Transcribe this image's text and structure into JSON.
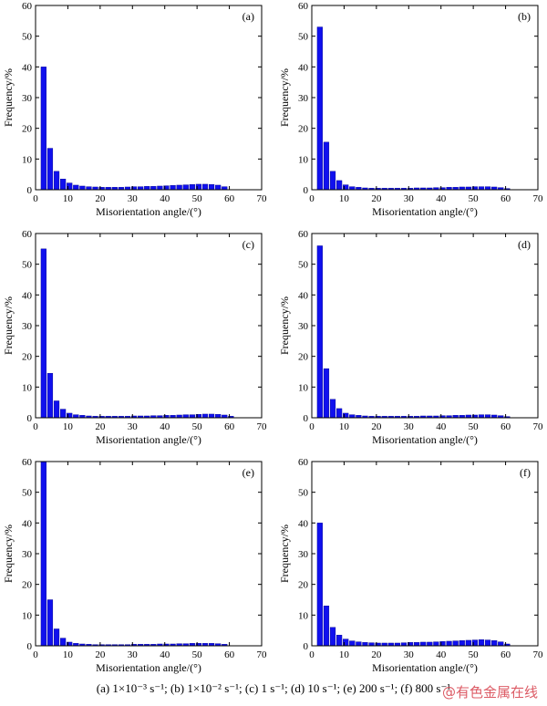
{
  "chart_data": [
    {
      "type": "bar",
      "panel_label": "(a)",
      "xlabel": "Misorientation angle/(°)",
      "ylabel": "Frequency/%",
      "xlim": [
        0,
        70
      ],
      "ylim": [
        0,
        60
      ],
      "xticks": [
        0,
        10,
        20,
        30,
        40,
        50,
        60,
        70
      ],
      "yticks": [
        0,
        10,
        20,
        30,
        40,
        50,
        60
      ],
      "x": [
        2.5,
        4.5,
        6.5,
        8.5,
        10.5,
        12.5,
        14.5,
        16.5,
        18.5,
        20.5,
        22.5,
        24.5,
        26.5,
        28.5,
        30.5,
        32.5,
        34.5,
        36.5,
        38.5,
        40.5,
        42.5,
        44.5,
        46.5,
        48.5,
        50.5,
        52.5,
        54.5,
        56.5,
        58.5
      ],
      "values": [
        40,
        13.5,
        6,
        3.5,
        2.2,
        1.5,
        1.2,
        1,
        0.9,
        0.8,
        0.8,
        0.8,
        0.8,
        0.9,
        1,
        1,
        1.1,
        1.1,
        1.2,
        1.3,
        1.4,
        1.5,
        1.6,
        1.7,
        1.8,
        1.8,
        1.7,
        1.5,
        1
      ]
    },
    {
      "type": "bar",
      "panel_label": "(b)",
      "xlabel": "Misorientation angle/(°)",
      "ylabel": "Frequency/%",
      "xlim": [
        0,
        70
      ],
      "ylim": [
        0,
        60
      ],
      "xticks": [
        0,
        10,
        20,
        30,
        40,
        50,
        60,
        70
      ],
      "yticks": [
        0,
        10,
        20,
        30,
        40,
        50,
        60
      ],
      "x": [
        2.5,
        4.5,
        6.5,
        8.5,
        10.5,
        12.5,
        14.5,
        16.5,
        18.5,
        20.5,
        22.5,
        24.5,
        26.5,
        28.5,
        30.5,
        32.5,
        34.5,
        36.5,
        38.5,
        40.5,
        42.5,
        44.5,
        46.5,
        48.5,
        50.5,
        52.5,
        54.5,
        56.5,
        58.5,
        60.5
      ],
      "values": [
        53,
        15.5,
        6,
        3,
        1.6,
        1,
        0.8,
        0.6,
        0.5,
        0.5,
        0.5,
        0.5,
        0.5,
        0.5,
        0.5,
        0.6,
        0.6,
        0.6,
        0.7,
        0.7,
        0.8,
        0.8,
        0.9,
        0.9,
        1,
        1,
        1,
        0.9,
        0.7,
        0.4
      ]
    },
    {
      "type": "bar",
      "panel_label": "(c)",
      "xlabel": "Misorientation angle/(°)",
      "ylabel": "Frequency/%",
      "xlim": [
        0,
        70
      ],
      "ylim": [
        0,
        60
      ],
      "xticks": [
        0,
        10,
        20,
        30,
        40,
        50,
        60,
        70
      ],
      "yticks": [
        0,
        10,
        20,
        30,
        40,
        50,
        60
      ],
      "x": [
        2.5,
        4.5,
        6.5,
        8.5,
        10.5,
        12.5,
        14.5,
        16.5,
        18.5,
        20.5,
        22.5,
        24.5,
        26.5,
        28.5,
        30.5,
        32.5,
        34.5,
        36.5,
        38.5,
        40.5,
        42.5,
        44.5,
        46.5,
        48.5,
        50.5,
        52.5,
        54.5,
        56.5,
        58.5,
        60.5
      ],
      "values": [
        55,
        14.5,
        5.5,
        2.8,
        1.5,
        1,
        0.8,
        0.6,
        0.5,
        0.5,
        0.5,
        0.5,
        0.5,
        0.5,
        0.6,
        0.6,
        0.6,
        0.7,
        0.7,
        0.8,
        0.8,
        0.9,
        1,
        1,
        1.1,
        1.2,
        1.2,
        1.1,
        0.9,
        0.5
      ]
    },
    {
      "type": "bar",
      "panel_label": "(d)",
      "xlabel": "Misorientation angle/(°)",
      "ylabel": "Frequency/%",
      "xlim": [
        0,
        70
      ],
      "ylim": [
        0,
        60
      ],
      "xticks": [
        0,
        10,
        20,
        30,
        40,
        50,
        60,
        70
      ],
      "yticks": [
        0,
        10,
        20,
        30,
        40,
        50,
        60
      ],
      "x": [
        2.5,
        4.5,
        6.5,
        8.5,
        10.5,
        12.5,
        14.5,
        16.5,
        18.5,
        20.5,
        22.5,
        24.5,
        26.5,
        28.5,
        30.5,
        32.5,
        34.5,
        36.5,
        38.5,
        40.5,
        42.5,
        44.5,
        46.5,
        48.5,
        50.5,
        52.5,
        54.5,
        56.5,
        58.5,
        60.5
      ],
      "values": [
        56,
        16,
        6,
        3,
        1.5,
        1,
        0.8,
        0.6,
        0.5,
        0.5,
        0.5,
        0.5,
        0.5,
        0.5,
        0.5,
        0.5,
        0.6,
        0.6,
        0.6,
        0.7,
        0.7,
        0.8,
        0.8,
        0.9,
        0.9,
        1,
        1,
        0.9,
        0.7,
        0.4
      ]
    },
    {
      "type": "bar",
      "panel_label": "(e)",
      "xlabel": "Misorientation angle/(°)",
      "ylabel": "Frequency/%",
      "xlim": [
        0,
        70
      ],
      "ylim": [
        0,
        60
      ],
      "xticks": [
        0,
        10,
        20,
        30,
        40,
        50,
        60,
        70
      ],
      "yticks": [
        0,
        10,
        20,
        30,
        40,
        50,
        60
      ],
      "x": [
        2.5,
        4.5,
        6.5,
        8.5,
        10.5,
        12.5,
        14.5,
        16.5,
        18.5,
        20.5,
        22.5,
        24.5,
        26.5,
        28.5,
        30.5,
        32.5,
        34.5,
        36.5,
        38.5,
        40.5,
        42.5,
        44.5,
        46.5,
        48.5,
        50.5,
        52.5,
        54.5,
        56.5,
        58.5
      ],
      "values": [
        60,
        15,
        5.5,
        2.5,
        1.2,
        0.8,
        0.6,
        0.5,
        0.4,
        0.4,
        0.4,
        0.4,
        0.4,
        0.4,
        0.5,
        0.5,
        0.5,
        0.5,
        0.6,
        0.6,
        0.6,
        0.7,
        0.7,
        0.8,
        0.8,
        0.8,
        0.8,
        0.7,
        0.5
      ]
    },
    {
      "type": "bar",
      "panel_label": "(f)",
      "xlabel": "Misorientation angle/(°)",
      "ylabel": "Frequency/%",
      "xlim": [
        0,
        70
      ],
      "ylim": [
        0,
        60
      ],
      "xticks": [
        0,
        10,
        20,
        30,
        40,
        50,
        60,
        70
      ],
      "yticks": [
        0,
        10,
        20,
        30,
        40,
        50,
        60
      ],
      "x": [
        2.5,
        4.5,
        6.5,
        8.5,
        10.5,
        12.5,
        14.5,
        16.5,
        18.5,
        20.5,
        22.5,
        24.5,
        26.5,
        28.5,
        30.5,
        32.5,
        34.5,
        36.5,
        38.5,
        40.5,
        42.5,
        44.5,
        46.5,
        48.5,
        50.5,
        52.5,
        54.5,
        56.5,
        58.5,
        60.5
      ],
      "values": [
        40,
        13,
        6,
        3.5,
        2.2,
        1.6,
        1.3,
        1.1,
        1,
        0.9,
        0.9,
        0.9,
        0.9,
        1,
        1.1,
        1.1,
        1.2,
        1.2,
        1.3,
        1.4,
        1.5,
        1.6,
        1.7,
        1.8,
        1.9,
        2,
        1.9,
        1.7,
        1.3,
        0.6
      ]
    }
  ],
  "style": {
    "bar_color": "#1010ee",
    "bar_edge": "#000088",
    "axis_color": "#000000"
  },
  "caption": "(a) 1×10⁻³ s⁻¹; (b) 1×10⁻² s⁻¹; (c) 1 s⁻¹; (d) 10 s⁻¹; (e) 200 s⁻¹; (f) 800 s⁻¹",
  "watermark": "@有色金属在线"
}
